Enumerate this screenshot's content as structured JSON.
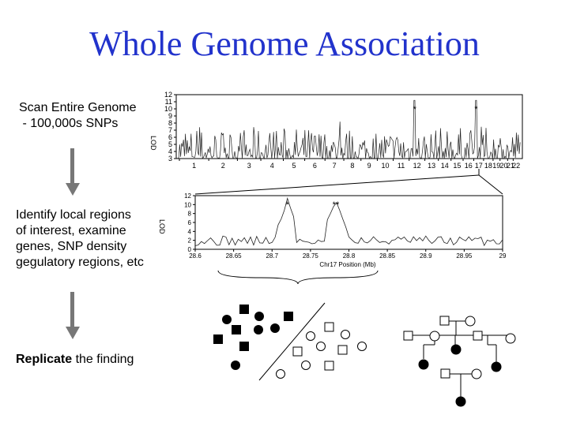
{
  "title": "Whole Genome Association",
  "steps": {
    "scan_line1": "Scan Entire Genome",
    "scan_line2": " - 100,000s SNPs",
    "identify_lines": [
      "Identify local regions",
      "of interest, examine",
      "genes, SNP density",
      "gegulatory regions, etc"
    ],
    "replicate_bold": "Replicate",
    "replicate_rest": " the finding"
  },
  "top_plot": {
    "ylabel": "LOD",
    "yticks": [
      "3",
      "4",
      "5",
      "6",
      "7",
      "8",
      "9",
      "10",
      "11",
      "12"
    ],
    "chromosomes": [
      "1",
      "2",
      "3",
      "4",
      "5",
      "6",
      "7",
      "8",
      "9",
      "10",
      "11",
      "12",
      "13",
      "14",
      "15",
      "16",
      "17",
      "18",
      "19",
      "20",
      "21",
      "22"
    ],
    "peak_marks": [
      "*",
      "*"
    ]
  },
  "bottom_plot": {
    "ylabel": "LOD",
    "yticks": [
      "0",
      "2",
      "4",
      "6",
      "8",
      "10",
      "12"
    ],
    "xticks": [
      "28.6",
      "28.65",
      "28.7",
      "28.75",
      "28.8",
      "28.85",
      "28.9",
      "28.95",
      "29"
    ],
    "xlabel": "Chr17 Position (Mb)",
    "peak_marks": [
      "*",
      "**"
    ]
  },
  "colors": {
    "title": "#2233cc",
    "arrow": "#777777"
  }
}
